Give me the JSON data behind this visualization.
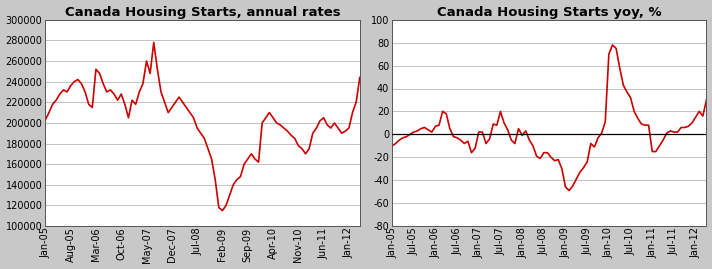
{
  "title1": "Canada Housing Starts, annual rates",
  "title2": "Canada Housing Starts yoy, %",
  "line_color": "#CC0000",
  "line_width": 1.2,
  "bg_color": "#FFFFFF",
  "fig_bg_color": "#C8C8C8",
  "grid_color": "#AAAAAA",
  "ylim1": [
    100000,
    300000
  ],
  "ylim2": [
    -80,
    100
  ],
  "yticks1": [
    100000,
    120000,
    140000,
    160000,
    180000,
    200000,
    220000,
    240000,
    260000,
    280000,
    300000
  ],
  "yticks2": [
    -80,
    -60,
    -40,
    -20,
    0,
    20,
    40,
    60,
    80,
    100
  ],
  "title_fontsize": 9.5,
  "tick_fontsize": 7,
  "values1": [
    203000,
    210000,
    218000,
    222000,
    228000,
    232000,
    230000,
    236000,
    240000,
    242000,
    238000,
    230000,
    218000,
    215000,
    252000,
    248000,
    238000,
    230000,
    232000,
    228000,
    222000,
    228000,
    218000,
    205000,
    222000,
    218000,
    230000,
    238000,
    260000,
    248000,
    278000,
    252000,
    230000,
    220000,
    210000,
    215000,
    220000,
    225000,
    220000,
    215000,
    210000,
    205000,
    195000,
    190000,
    185000,
    175000,
    165000,
    145000,
    118000,
    115000,
    120000,
    130000,
    140000,
    145000,
    148000,
    160000,
    165000,
    170000,
    165000,
    162000,
    200000,
    205000,
    210000,
    205000,
    200000,
    198000,
    195000,
    192000,
    188000,
    185000,
    178000,
    175000,
    170000,
    175000,
    190000,
    195000,
    202000,
    205000,
    198000,
    195000,
    200000,
    195000,
    190000,
    192000,
    195000,
    210000,
    220000,
    244000
  ],
  "values2": [
    -10,
    -8,
    -5,
    -3,
    -2,
    0,
    2,
    3,
    5,
    6,
    4,
    2,
    7,
    8,
    20,
    18,
    5,
    -2,
    -3,
    -5,
    -8,
    -6,
    -16,
    -12,
    2,
    2,
    -8,
    -4,
    9,
    8,
    20,
    10,
    4,
    -5,
    -8,
    5,
    -1,
    3,
    -5,
    -10,
    -19,
    -21,
    -16,
    -16,
    -20,
    -23,
    -22,
    -30,
    -46,
    -49,
    -45,
    -39,
    -33,
    -29,
    -24,
    -8,
    -11,
    -3,
    1,
    11,
    70,
    78,
    75,
    58,
    43,
    37,
    32,
    20,
    14,
    9,
    8,
    8,
    -15,
    -15,
    -10,
    -5,
    1,
    3,
    2,
    2,
    6,
    6,
    7,
    10,
    15,
    20,
    16,
    30
  ],
  "xtick_labels1": [
    "Jan-05",
    "Aug-05",
    "Mar-06",
    "Oct-06",
    "May-07",
    "Dec-07",
    "Jul-08",
    "Feb-09",
    "Sep-09",
    "Apr-10",
    "Nov-10",
    "Jun-11",
    "Jan-12"
  ],
  "xtick_indices1": [
    0,
    7,
    14,
    21,
    28,
    35,
    42,
    49,
    56,
    63,
    70,
    77,
    84
  ],
  "xtick_labels2": [
    "Jan-05",
    "Jul-05",
    "Jan-06",
    "Jul-06",
    "Jan-07",
    "Jul-07",
    "Jan-08",
    "Jul-08",
    "Jan-09",
    "Jul-09",
    "Jan-10",
    "Jul-10",
    "Jan-11",
    "Jul-11",
    "Jan-12"
  ],
  "xtick_indices2": [
    0,
    6,
    12,
    18,
    24,
    30,
    36,
    42,
    48,
    54,
    60,
    66,
    72,
    78,
    84
  ]
}
